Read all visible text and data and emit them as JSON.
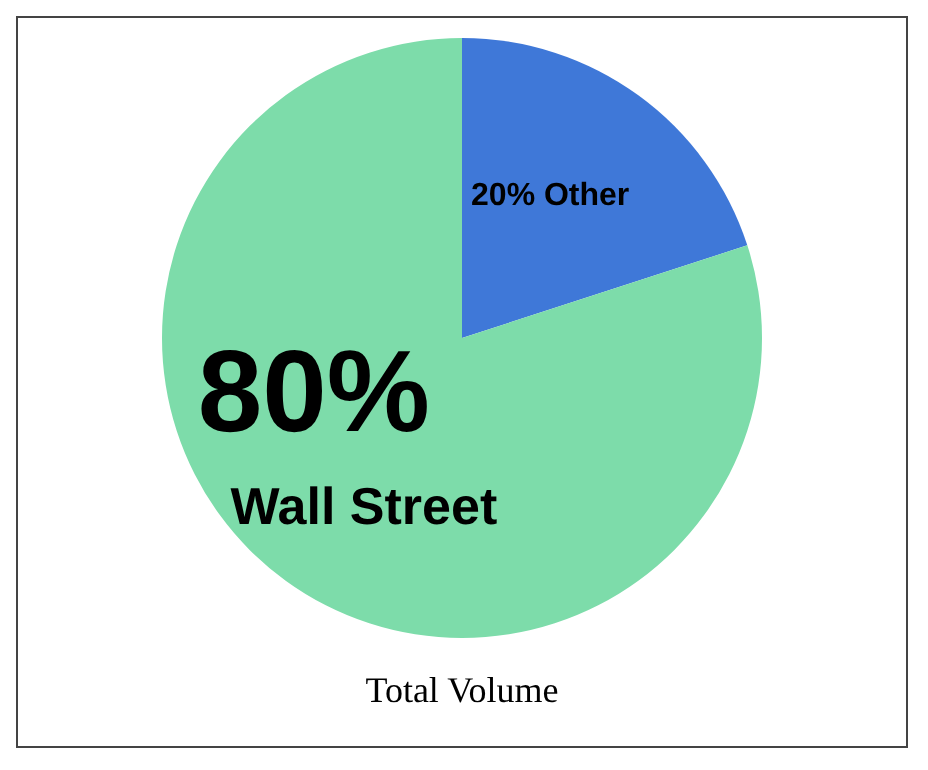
{
  "chart_data": {
    "type": "pie",
    "title": "Total Volume",
    "categories": [
      "Other",
      "Wall Street"
    ],
    "values": [
      20,
      80
    ],
    "colors": [
      "#3f78d8",
      "#7ddcaa"
    ],
    "value_labels": [
      "20%",
      "80%"
    ],
    "legend": false
  }
}
